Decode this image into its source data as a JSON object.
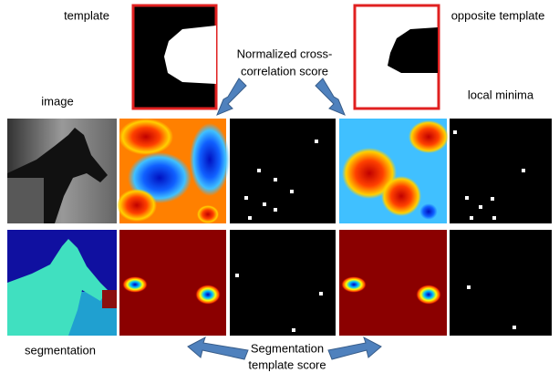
{
  "labels": {
    "template": "template",
    "opposite_template": "opposite template",
    "ncc": [
      "Normalized cross-",
      "correlation score"
    ],
    "image": "image",
    "local_minima": "local minima",
    "segmentation": "segmentation",
    "seg_score": [
      "Segmentation",
      "template score"
    ]
  }
}
